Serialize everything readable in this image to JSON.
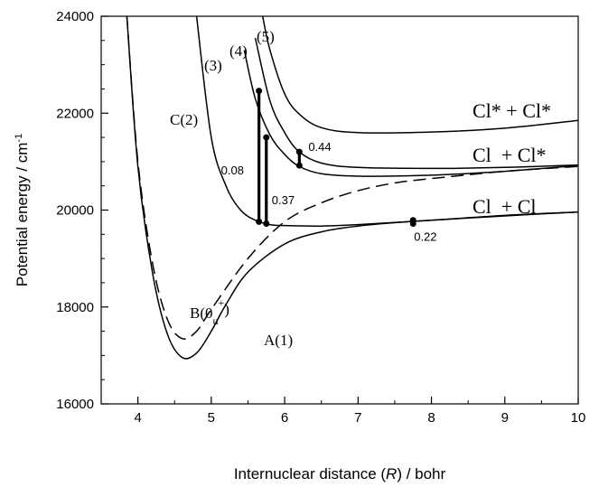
{
  "chart_data": {
    "type": "line",
    "xlabel_prefix": "Internuclear distance (",
    "xlabel_var": "R",
    "xlabel_suffix": ") / bohr",
    "ylabel_text": "Potential energy / cm",
    "ylabel_exp": "-1",
    "xlim": [
      3.5,
      10
    ],
    "ylim": [
      16000,
      24000
    ],
    "xticks": [
      4,
      5,
      6,
      7,
      8,
      9,
      10
    ],
    "yticks": [
      16000,
      18000,
      20000,
      22000,
      24000
    ],
    "grid": false,
    "series": [
      {
        "key": "A",
        "label": "A(1)",
        "dashed": false,
        "x": [
          3.85,
          4.0,
          4.2,
          4.4,
          4.6,
          4.8,
          5.0,
          5.2,
          5.5,
          6.0,
          6.5,
          7.0,
          7.5,
          8.0,
          9.0,
          10.0
        ],
        "y": [
          24000,
          20900,
          18700,
          17450,
          16960,
          17050,
          17500,
          18050,
          18720,
          19300,
          19550,
          19670,
          19740,
          19790,
          19880,
          19960
        ]
      },
      {
        "key": "B",
        "label_main": "B(0",
        "label_sub": "u",
        "label_sup": "+",
        "label_end": ")",
        "dashed": true,
        "x": [
          3.85,
          4.0,
          4.2,
          4.4,
          4.6,
          4.8,
          5.0,
          5.5,
          6.0,
          6.5,
          7.0,
          7.5,
          8.0,
          9.0,
          10.0
        ],
        "y": [
          24000,
          21000,
          18900,
          17750,
          17350,
          17500,
          17950,
          19000,
          19760,
          20150,
          20400,
          20560,
          20650,
          20800,
          20900
        ]
      },
      {
        "key": "C",
        "label": "C(2)",
        "dashed": false,
        "x": [
          4.8,
          5.0,
          5.2,
          5.4,
          5.6,
          5.8,
          6.0,
          6.5,
          7.0,
          8.0,
          9.0,
          10.0
        ],
        "y": [
          24000,
          21500,
          20500,
          20000,
          19790,
          19700,
          19680,
          19670,
          19700,
          19790,
          19890,
          19960
        ]
      },
      {
        "key": "3",
        "label": "(3)",
        "dashed": false,
        "x": [
          5.45,
          5.6,
          5.8,
          6.0,
          6.2,
          6.5,
          7.0,
          8.0,
          9.0,
          10.0
        ],
        "y": [
          23300,
          22300,
          21550,
          21150,
          20900,
          20750,
          20700,
          20720,
          20800,
          20920
        ]
      },
      {
        "key": "4",
        "label": "(4)",
        "dashed": false,
        "x": [
          5.6,
          5.8,
          6.0,
          6.2,
          6.5,
          7.0,
          8.0,
          9.0,
          10.0
        ],
        "y": [
          23550,
          22250,
          21600,
          21200,
          20970,
          20880,
          20860,
          20880,
          20930
        ]
      },
      {
        "key": "5",
        "label": "(5)",
        "dashed": false,
        "x": [
          5.7,
          5.8,
          6.0,
          6.2,
          6.5,
          7.0,
          8.0,
          9.0,
          10.0
        ],
        "y": [
          24000,
          23300,
          22400,
          21980,
          21700,
          21600,
          21610,
          21690,
          21850
        ]
      }
    ],
    "transitions": [
      {
        "x": 5.65,
        "y1": 19760,
        "y2": 22460,
        "label": "0.08"
      },
      {
        "x": 5.75,
        "y1": 19720,
        "y2": 21500,
        "label": "0.37"
      },
      {
        "x": 6.2,
        "y1": 20920,
        "y2": 21200,
        "label": "0.44"
      },
      {
        "x": 7.75,
        "y1": 19720,
        "y2": 19790,
        "label": "0.22"
      }
    ],
    "annotations": {
      "cl_star_cl_star": "Cl* + Cl*",
      "cl_cl_star": "Cl  + Cl*",
      "cl_cl": "Cl  + Cl"
    }
  }
}
